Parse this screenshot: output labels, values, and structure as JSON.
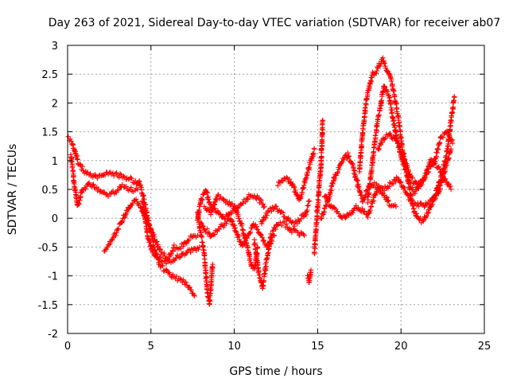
{
  "chart_data": {
    "type": "scatter",
    "title": "Day 263 of 2021, Sidereal Day-to-day VTEC variation (SDTVAR) for receiver ab07",
    "xlabel": "GPS time / hours",
    "ylabel": "SDTVAR / TECUs",
    "xlim": [
      0,
      25
    ],
    "ylim": [
      -2,
      3
    ],
    "x_ticks": [
      0,
      5,
      10,
      15,
      20,
      25
    ],
    "y_ticks": [
      -2,
      -1.5,
      -1,
      -0.5,
      0,
      0.5,
      1,
      1.5,
      2,
      2.5,
      3
    ],
    "x_tick_labels": [
      "0",
      "5",
      "10",
      "15",
      "20",
      "25"
    ],
    "y_tick_labels": [
      "-2",
      "-1.5",
      "-1",
      "-0.5",
      "0",
      "0.5",
      "1",
      "1.5",
      "2",
      "2.5",
      "3"
    ],
    "grid": true,
    "marker": "+",
    "series": [
      {
        "name": "SDTVAR",
        "color": "#ff0000",
        "tracks": [
          [
            [
              0.0,
              1.4
            ],
            [
              0.3,
              1.3
            ],
            [
              0.6,
              1.0
            ],
            [
              1.0,
              0.8
            ],
            [
              1.5,
              0.75
            ],
            [
              2.0,
              0.7
            ],
            [
              2.5,
              0.8
            ],
            [
              3.0,
              0.75
            ],
            [
              3.5,
              0.7
            ],
            [
              4.0,
              0.65
            ],
            [
              4.3,
              0.6
            ]
          ],
          [
            [
              0.2,
              1.1
            ],
            [
              0.4,
              0.6
            ],
            [
              0.6,
              0.2
            ],
            [
              0.9,
              0.5
            ],
            [
              1.3,
              0.6
            ],
            [
              1.8,
              0.5
            ],
            [
              2.3,
              0.4
            ],
            [
              2.8,
              0.45
            ],
            [
              3.3,
              0.55
            ],
            [
              3.8,
              0.5
            ],
            [
              4.2,
              0.5
            ]
          ],
          [
            [
              2.2,
              -0.6
            ],
            [
              2.6,
              -0.4
            ],
            [
              3.0,
              -0.2
            ],
            [
              3.5,
              0.1
            ],
            [
              3.8,
              0.25
            ],
            [
              4.1,
              0.3
            ],
            [
              4.4,
              0.2
            ],
            [
              4.7,
              0.0
            ],
            [
              5.0,
              -0.2
            ],
            [
              5.3,
              -0.4
            ],
            [
              5.6,
              -0.6
            ],
            [
              6.0,
              -0.7
            ],
            [
              6.4,
              -0.5
            ],
            [
              6.8,
              -0.5
            ],
            [
              7.2,
              -0.4
            ],
            [
              7.5,
              -0.3
            ],
            [
              7.8,
              -0.3
            ]
          ],
          [
            [
              4.3,
              0.65
            ],
            [
              4.6,
              0.3
            ],
            [
              4.9,
              -0.1
            ],
            [
              5.2,
              -0.5
            ],
            [
              5.5,
              -0.8
            ],
            [
              5.8,
              -0.9
            ],
            [
              6.2,
              -1.0
            ],
            [
              6.6,
              -1.05
            ],
            [
              7.0,
              -1.1
            ],
            [
              7.3,
              -1.2
            ],
            [
              7.6,
              -1.35
            ]
          ],
          [
            [
              4.5,
              0.3
            ],
            [
              4.8,
              -0.3
            ],
            [
              5.1,
              -0.6
            ],
            [
              5.5,
              -0.7
            ],
            [
              5.9,
              -0.75
            ],
            [
              6.3,
              -0.75
            ],
            [
              6.7,
              -0.65
            ],
            [
              7.1,
              -0.6
            ],
            [
              7.5,
              -0.55
            ],
            [
              7.9,
              -0.5
            ]
          ],
          [
            [
              7.8,
              0.1
            ],
            [
              8.0,
              -0.3
            ],
            [
              8.2,
              -0.6
            ],
            [
              8.3,
              -1.0
            ],
            [
              8.4,
              -1.3
            ],
            [
              8.5,
              -1.5
            ],
            [
              8.6,
              -1.2
            ],
            [
              8.7,
              -0.8
            ]
          ],
          [
            [
              7.8,
              0.0
            ],
            [
              8.0,
              0.3
            ],
            [
              8.3,
              0.5
            ],
            [
              8.6,
              0.2
            ],
            [
              9.0,
              0.1
            ],
            [
              9.4,
              0.0
            ],
            [
              9.8,
              0.1
            ],
            [
              10.2,
              0.2
            ],
            [
              10.6,
              0.3
            ],
            [
              11.0,
              0.4
            ],
            [
              11.4,
              0.35
            ],
            [
              11.8,
              0.2
            ]
          ],
          [
            [
              8.0,
              -0.1
            ],
            [
              8.3,
              -0.2
            ],
            [
              8.6,
              -0.3
            ],
            [
              9.0,
              -0.2
            ],
            [
              9.4,
              -0.1
            ],
            [
              9.8,
              0.0
            ],
            [
              10.2,
              -0.3
            ],
            [
              10.5,
              -0.5
            ],
            [
              10.8,
              -0.3
            ],
            [
              11.2,
              -0.1
            ],
            [
              11.6,
              -0.3
            ],
            [
              12.0,
              -0.5
            ],
            [
              12.4,
              -0.3
            ]
          ],
          [
            [
              8.2,
              0.2
            ],
            [
              8.6,
              0.1
            ],
            [
              9.0,
              0.4
            ],
            [
              9.5,
              0.3
            ],
            [
              10.0,
              0.2
            ],
            [
              10.4,
              -0.1
            ],
            [
              10.8,
              -0.5
            ],
            [
              11.0,
              -0.8
            ],
            [
              11.2,
              -0.9
            ],
            [
              11.4,
              -0.5
            ]
          ],
          [
            [
              11.2,
              -0.4
            ],
            [
              11.5,
              -1.0
            ],
            [
              11.7,
              -1.2
            ],
            [
              11.9,
              -0.8
            ],
            [
              12.2,
              -0.3
            ],
            [
              12.6,
              -0.1
            ],
            [
              13.0,
              -0.1
            ],
            [
              13.4,
              -0.2
            ],
            [
              13.8,
              -0.25
            ],
            [
              14.2,
              -0.3
            ]
          ],
          [
            [
              11.6,
              -0.1
            ],
            [
              12.0,
              0.1
            ],
            [
              12.4,
              0.2
            ],
            [
              12.8,
              0.1
            ],
            [
              13.2,
              0.0
            ],
            [
              13.6,
              -0.1
            ],
            [
              14.0,
              0.0
            ],
            [
              14.3,
              0.1
            ],
            [
              14.5,
              0.3
            ]
          ],
          [
            [
              12.6,
              0.6
            ],
            [
              13.0,
              0.7
            ],
            [
              13.3,
              0.65
            ],
            [
              13.6,
              0.5
            ],
            [
              13.9,
              0.3
            ],
            [
              14.2,
              0.6
            ],
            [
              14.4,
              0.8
            ],
            [
              14.6,
              1.0
            ],
            [
              14.8,
              1.2
            ]
          ],
          [
            [
              14.4,
              -1.0
            ],
            [
              14.5,
              -1.1
            ],
            [
              14.6,
              -0.9
            ]
          ],
          [
            [
              14.8,
              -0.6
            ],
            [
              14.9,
              -0.2
            ],
            [
              15.0,
              0.2
            ],
            [
              15.1,
              0.6
            ],
            [
              15.2,
              0.9
            ],
            [
              15.3,
              1.7
            ]
          ],
          [
            [
              15.2,
              0.0
            ],
            [
              15.6,
              0.3
            ],
            [
              16.0,
              0.7
            ],
            [
              16.4,
              0.95
            ],
            [
              16.8,
              1.1
            ],
            [
              17.1,
              0.9
            ],
            [
              17.4,
              0.6
            ],
            [
              17.7,
              0.3
            ],
            [
              18.0,
              0.5
            ],
            [
              18.3,
              0.6
            ],
            [
              18.6,
              0.55
            ],
            [
              19.0,
              0.5
            ],
            [
              19.4,
              0.6
            ],
            [
              19.8,
              0.7
            ],
            [
              20.2,
              0.5
            ],
            [
              20.6,
              0.3
            ],
            [
              21.0,
              0.25
            ],
            [
              21.4,
              0.2
            ],
            [
              21.8,
              0.3
            ],
            [
              22.2,
              0.4
            ],
            [
              22.6,
              0.8
            ],
            [
              23.0,
              1.2
            ]
          ],
          [
            [
              15.4,
              0.4
            ],
            [
              15.8,
              0.2
            ],
            [
              16.2,
              0.1
            ],
            [
              16.6,
              0.0
            ],
            [
              17.0,
              0.1
            ],
            [
              17.3,
              0.2
            ],
            [
              17.6,
              0.15
            ],
            [
              18.0,
              0.05
            ],
            [
              18.3,
              0.3
            ],
            [
              18.6,
              0.5
            ],
            [
              19.0,
              0.4
            ],
            [
              19.3,
              0.25
            ],
            [
              19.7,
              0.2
            ]
          ],
          [
            [
              17.5,
              0.8
            ],
            [
              17.7,
              1.5
            ],
            [
              17.9,
              2.0
            ],
            [
              18.1,
              2.3
            ],
            [
              18.3,
              2.5
            ],
            [
              18.5,
              2.55
            ],
            [
              18.7,
              2.65
            ],
            [
              18.9,
              2.75
            ],
            [
              19.1,
              2.6
            ],
            [
              19.3,
              2.5
            ],
            [
              19.5,
              2.3
            ],
            [
              19.8,
              1.8
            ],
            [
              20.1,
              1.2
            ],
            [
              20.4,
              0.7
            ],
            [
              20.7,
              0.2
            ],
            [
              21.0,
              0.0
            ],
            [
              21.3,
              -0.05
            ],
            [
              21.6,
              0.1
            ],
            [
              21.9,
              0.3
            ],
            [
              22.2,
              0.55
            ],
            [
              22.5,
              0.8
            ],
            [
              22.8,
              1.2
            ],
            [
              23.0,
              1.7
            ],
            [
              23.2,
              2.1
            ]
          ],
          [
            [
              18.0,
              0.3
            ],
            [
              18.3,
              1.0
            ],
            [
              18.5,
              1.5
            ],
            [
              18.8,
              2.0
            ],
            [
              19.0,
              2.3
            ],
            [
              19.3,
              2.1
            ],
            [
              19.6,
              1.6
            ],
            [
              19.9,
              1.2
            ],
            [
              20.2,
              0.9
            ],
            [
              20.5,
              0.6
            ],
            [
              20.8,
              0.45
            ],
            [
              21.2,
              0.6
            ],
            [
              21.6,
              0.8
            ],
            [
              22.0,
              1.0
            ],
            [
              22.4,
              1.4
            ],
            [
              22.8,
              1.5
            ],
            [
              23.1,
              1.3
            ]
          ],
          [
            [
              18.6,
              1.2
            ],
            [
              19.0,
              1.4
            ],
            [
              19.4,
              1.45
            ],
            [
              19.8,
              1.3
            ],
            [
              20.2,
              1.0
            ],
            [
              20.6,
              0.7
            ],
            [
              21.0,
              0.55
            ],
            [
              21.4,
              0.7
            ],
            [
              21.8,
              1.0
            ],
            [
              22.2,
              0.9
            ],
            [
              22.6,
              0.7
            ],
            [
              23.0,
              0.5
            ]
          ]
        ]
      }
    ]
  }
}
